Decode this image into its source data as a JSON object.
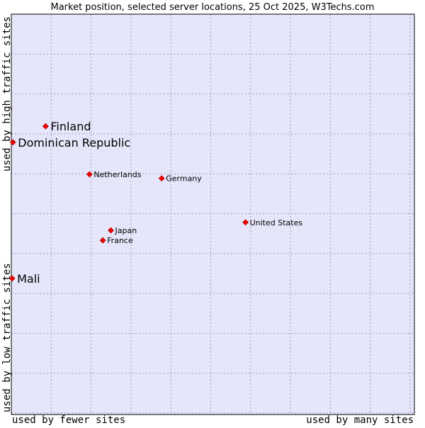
{
  "chart_data": {
    "type": "scatter",
    "title": "Market position, selected server locations, 25 Oct 2025, W3Techs.com",
    "xlabel_left": "used by fewer sites",
    "xlabel_right": "used by many sites",
    "ylabel_top": "used by high traffic sites",
    "ylabel_bottom": "used by low traffic sites",
    "xlim": [
      0,
      100
    ],
    "ylim": [
      0,
      100
    ],
    "grid": true,
    "points": [
      {
        "label": "Finland",
        "x": 8.5,
        "y": 72.0,
        "highlight": true
      },
      {
        "label": "Dominican Republic",
        "x": 0.4,
        "y": 68.0,
        "highlight": true
      },
      {
        "label": "Mali",
        "x": 0.2,
        "y": 34.0,
        "highlight": true
      },
      {
        "label": "Netherlands",
        "x": 19.4,
        "y": 60.0,
        "highlight": false
      },
      {
        "label": "Germany",
        "x": 37.3,
        "y": 59.0,
        "highlight": false
      },
      {
        "label": "United States",
        "x": 58.1,
        "y": 48.0,
        "highlight": false
      },
      {
        "label": "Japan",
        "x": 24.7,
        "y": 46.0,
        "highlight": false
      },
      {
        "label": "France",
        "x": 22.7,
        "y": 43.5,
        "highlight": false
      }
    ]
  },
  "colors": {
    "plot_background": "#e6e6fa",
    "grid": "#9b9bb5",
    "marker": "#ee0000",
    "text": "#000000"
  }
}
